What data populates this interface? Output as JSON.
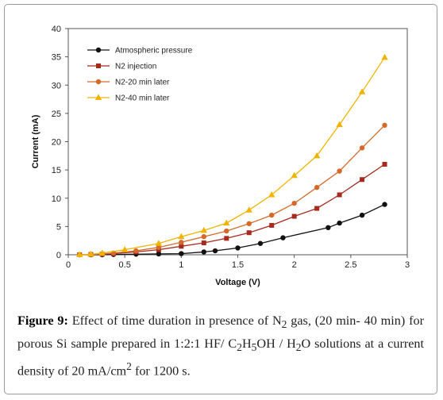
{
  "chart_data": {
    "type": "line",
    "xlabel": "Voltage (V)",
    "ylabel": "Current (mA)",
    "xlim": [
      0,
      3
    ],
    "ylim": [
      0,
      40
    ],
    "xticks": [
      "0",
      "0.5",
      "1",
      "1.5",
      "2",
      "2.5",
      "3"
    ],
    "yticks": [
      "0",
      "5",
      "10",
      "15",
      "20",
      "25",
      "30",
      "35",
      "40"
    ],
    "grid": false,
    "legend_position": "top-left",
    "series": [
      {
        "name": "Atmospheric pressure",
        "color": "#111111",
        "marker": "circle",
        "x": [
          0.1,
          0.2,
          0.3,
          0.4,
          0.6,
          0.8,
          1.0,
          1.2,
          1.3,
          1.5,
          1.7,
          1.9,
          2.3,
          2.4,
          2.6,
          2.8
        ],
        "y": [
          0.0,
          0.0,
          0.0,
          0.05,
          0.1,
          0.15,
          0.2,
          0.5,
          0.7,
          1.2,
          2.0,
          3.0,
          4.8,
          5.6,
          7.0,
          8.9
        ]
      },
      {
        "name": "N2 injection",
        "color": "#a62a1e",
        "marker": "square",
        "x": [
          0.1,
          0.2,
          0.3,
          0.4,
          0.6,
          0.8,
          1.0,
          1.2,
          1.4,
          1.6,
          1.8,
          2.0,
          2.2,
          2.4,
          2.6,
          2.8
        ],
        "y": [
          0.0,
          0.05,
          0.1,
          0.2,
          0.5,
          0.9,
          1.5,
          2.1,
          2.9,
          3.9,
          5.2,
          6.8,
          8.2,
          10.6,
          13.3,
          16.0
        ]
      },
      {
        "name": "N2-20 min later",
        "color": "#d36a2a",
        "marker": "circle",
        "x": [
          0.1,
          0.2,
          0.3,
          0.4,
          0.6,
          0.8,
          1.0,
          1.2,
          1.4,
          1.6,
          1.8,
          2.0,
          2.2,
          2.4,
          2.6,
          2.8
        ],
        "y": [
          0.0,
          0.05,
          0.15,
          0.3,
          0.7,
          1.3,
          2.2,
          3.2,
          4.2,
          5.5,
          7.0,
          9.1,
          11.9,
          14.8,
          18.9,
          22.9
        ]
      },
      {
        "name": "N2-40 min later",
        "color": "#f0b400",
        "marker": "triangle",
        "x": [
          0.1,
          0.2,
          0.3,
          0.5,
          0.8,
          1.0,
          1.2,
          1.4,
          1.6,
          1.8,
          2.0,
          2.2,
          2.4,
          2.6,
          2.8
        ],
        "y": [
          0.0,
          0.1,
          0.3,
          0.9,
          2.0,
          3.2,
          4.3,
          5.6,
          7.9,
          10.6,
          14.0,
          17.5,
          23.0,
          28.8,
          34.9
        ]
      }
    ]
  },
  "caption": {
    "label": "Figure 9:",
    "text_1": " Effect of time duration in presence of N",
    "sub_1": "2",
    "text_2": " gas, (20 min- 40 min) for porous Si sample prepared in 1:2:1 HF/ C",
    "sub_2": "2",
    "text_3": "H",
    "sub_3": "5",
    "text_4": "OH / H",
    "sub_4": "2",
    "text_5": "O solutions at a current density of 20 mA/cm",
    "sup_1": "2",
    "text_6": " for 1200 s."
  }
}
